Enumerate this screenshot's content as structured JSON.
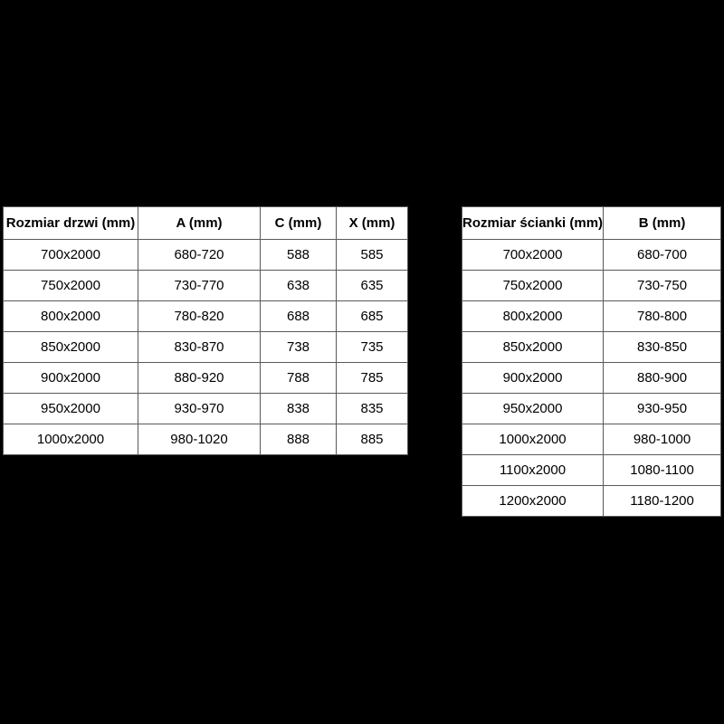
{
  "page": {
    "background_color": "#000000",
    "table_background_color": "#ffffff",
    "border_color": "#595959",
    "text_color": "#000000"
  },
  "tables": {
    "doors": {
      "headers": [
        "Rozmiar drzwi (mm)",
        "A (mm)",
        "C (mm)",
        "X (mm)"
      ],
      "rows": [
        [
          "700x2000",
          "680-720",
          "588",
          "585"
        ],
        [
          "750x2000",
          "730-770",
          "638",
          "635"
        ],
        [
          "800x2000",
          "780-820",
          "688",
          "685"
        ],
        [
          "850x2000",
          "830-870",
          "738",
          "735"
        ],
        [
          "900x2000",
          "880-920",
          "788",
          "785"
        ],
        [
          "950x2000",
          "930-970",
          "838",
          "835"
        ],
        [
          "1000x2000",
          "980-1020",
          "888",
          "885"
        ]
      ]
    },
    "wall": {
      "headers": [
        "Rozmiar ścianki (mm)",
        "B (mm)"
      ],
      "rows": [
        [
          "700x2000",
          "680-700"
        ],
        [
          "750x2000",
          "730-750"
        ],
        [
          "800x2000",
          "780-800"
        ],
        [
          "850x2000",
          "830-850"
        ],
        [
          "900x2000",
          "880-900"
        ],
        [
          "950x2000",
          "930-950"
        ],
        [
          "1000x2000",
          "980-1000"
        ],
        [
          "1100x2000",
          "1080-1100"
        ],
        [
          "1200x2000",
          "1180-1200"
        ]
      ]
    }
  }
}
